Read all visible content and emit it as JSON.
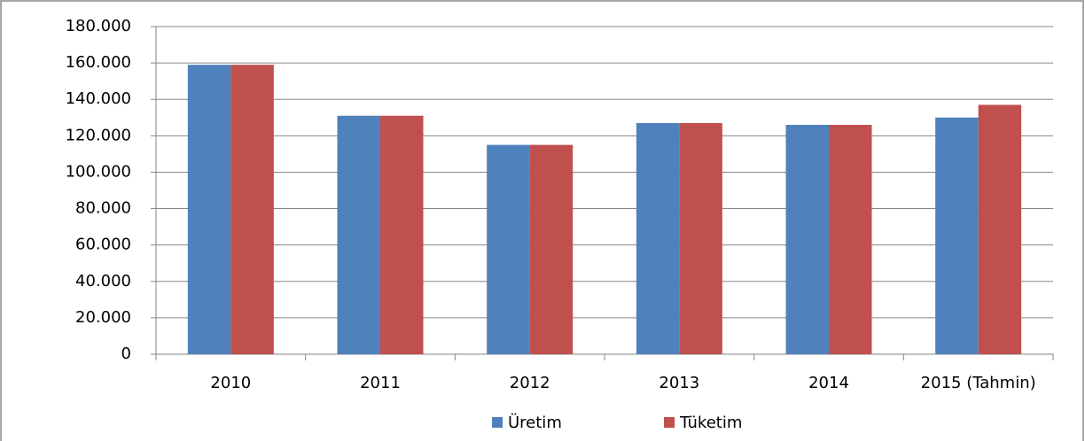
{
  "chart_data": {
    "type": "bar",
    "categories": [
      "2010",
      "2011",
      "2012",
      "2013",
      "2014",
      "2015 (Tahmin)"
    ],
    "series": [
      {
        "name": "Üretim",
        "color": "#4f81bd",
        "values": [
          159000,
          131000,
          115000,
          127000,
          126000,
          130000
        ]
      },
      {
        "name": "Tüketim",
        "color": "#c0504d",
        "values": [
          159000,
          131000,
          115000,
          127000,
          126000,
          137000
        ]
      }
    ],
    "ylim": [
      0,
      180000
    ],
    "yticks": [
      0,
      {
        "value": 20000,
        "label": "20.000"
      },
      {
        "value": 40000,
        "label": "40.000"
      },
      {
        "value": 60000,
        "label": "60.000"
      },
      {
        "value": 80000,
        "label": "80.000"
      },
      {
        "value": 100000,
        "label": "100.000"
      },
      {
        "value": 120000,
        "label": "120.000"
      },
      {
        "value": 140000,
        "label": "140.000"
      },
      {
        "value": 160000,
        "label": "160.000"
      },
      {
        "value": 180000,
        "label": "180.000"
      }
    ],
    "grid": true,
    "legend": "bottom"
  }
}
